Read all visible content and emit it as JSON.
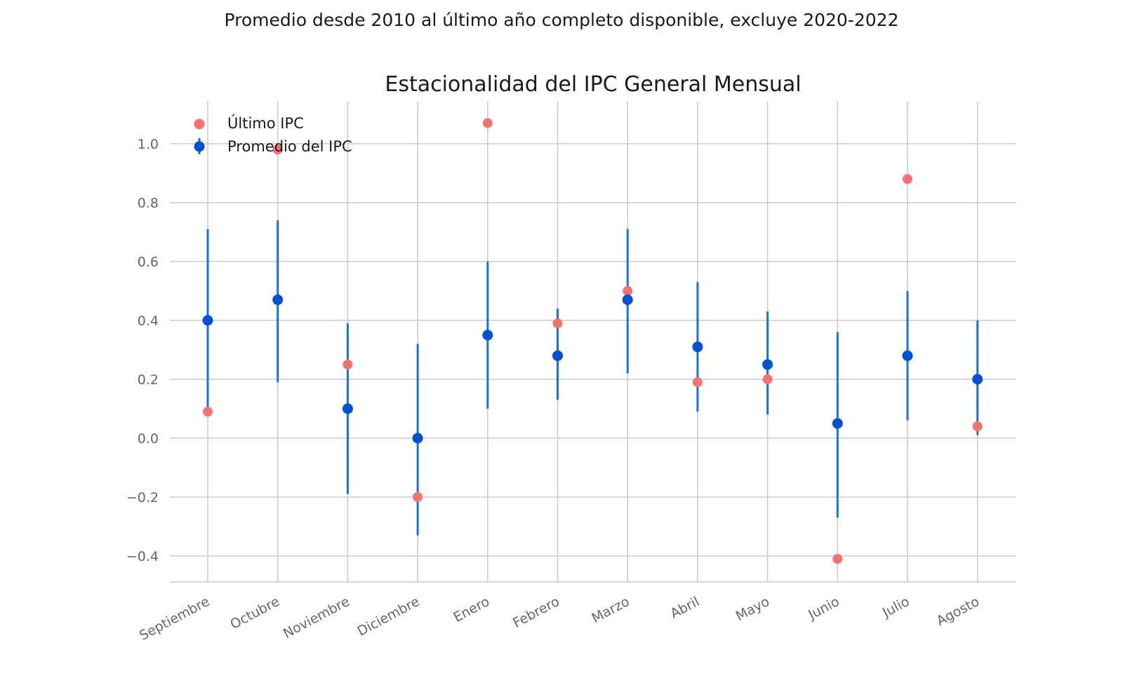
{
  "suptitle": "Promedio desde 2010 al último año completo disponible, excluye 2020-2022",
  "chart_data": {
    "type": "scatter",
    "title": "Estacionalidad del IPC General Mensual",
    "xlabel": "",
    "ylabel": "",
    "categories": [
      "Septiembre",
      "Octubre",
      "Noviembre",
      "Diciembre",
      "Enero",
      "Febrero",
      "Marzo",
      "Abril",
      "Mayo",
      "Junio",
      "Julio",
      "Agosto"
    ],
    "ylim": [
      -0.49,
      1.15
    ],
    "yticks": [
      -0.4,
      -0.2,
      0.0,
      0.2,
      0.4,
      0.6,
      0.8,
      1.0
    ],
    "ytick_labels": [
      "−0.4",
      "−0.2",
      "0.0",
      "0.2",
      "0.4",
      "0.6",
      "0.8",
      "1.0"
    ],
    "grid": true,
    "legend_position": "top-left",
    "series": [
      {
        "name": "Último IPC",
        "color": "#f87171",
        "values": [
          0.09,
          0.98,
          0.25,
          -0.2,
          1.07,
          0.39,
          0.5,
          0.19,
          0.2,
          -0.41,
          0.88,
          0.04
        ]
      },
      {
        "name": "Promedio del IPC",
        "color": "#0052d4",
        "error_color": "#1a6fe6",
        "values": [
          0.4,
          0.47,
          0.1,
          0.0,
          0.35,
          0.28,
          0.47,
          0.31,
          0.25,
          0.05,
          0.28,
          0.2
        ],
        "lower": [
          0.09,
          0.19,
          -0.19,
          -0.33,
          0.1,
          0.13,
          0.22,
          0.09,
          0.08,
          -0.27,
          0.06,
          0.01
        ],
        "upper": [
          0.71,
          0.74,
          0.39,
          0.32,
          0.6,
          0.44,
          0.71,
          0.53,
          0.43,
          0.36,
          0.5,
          0.4
        ]
      }
    ]
  }
}
